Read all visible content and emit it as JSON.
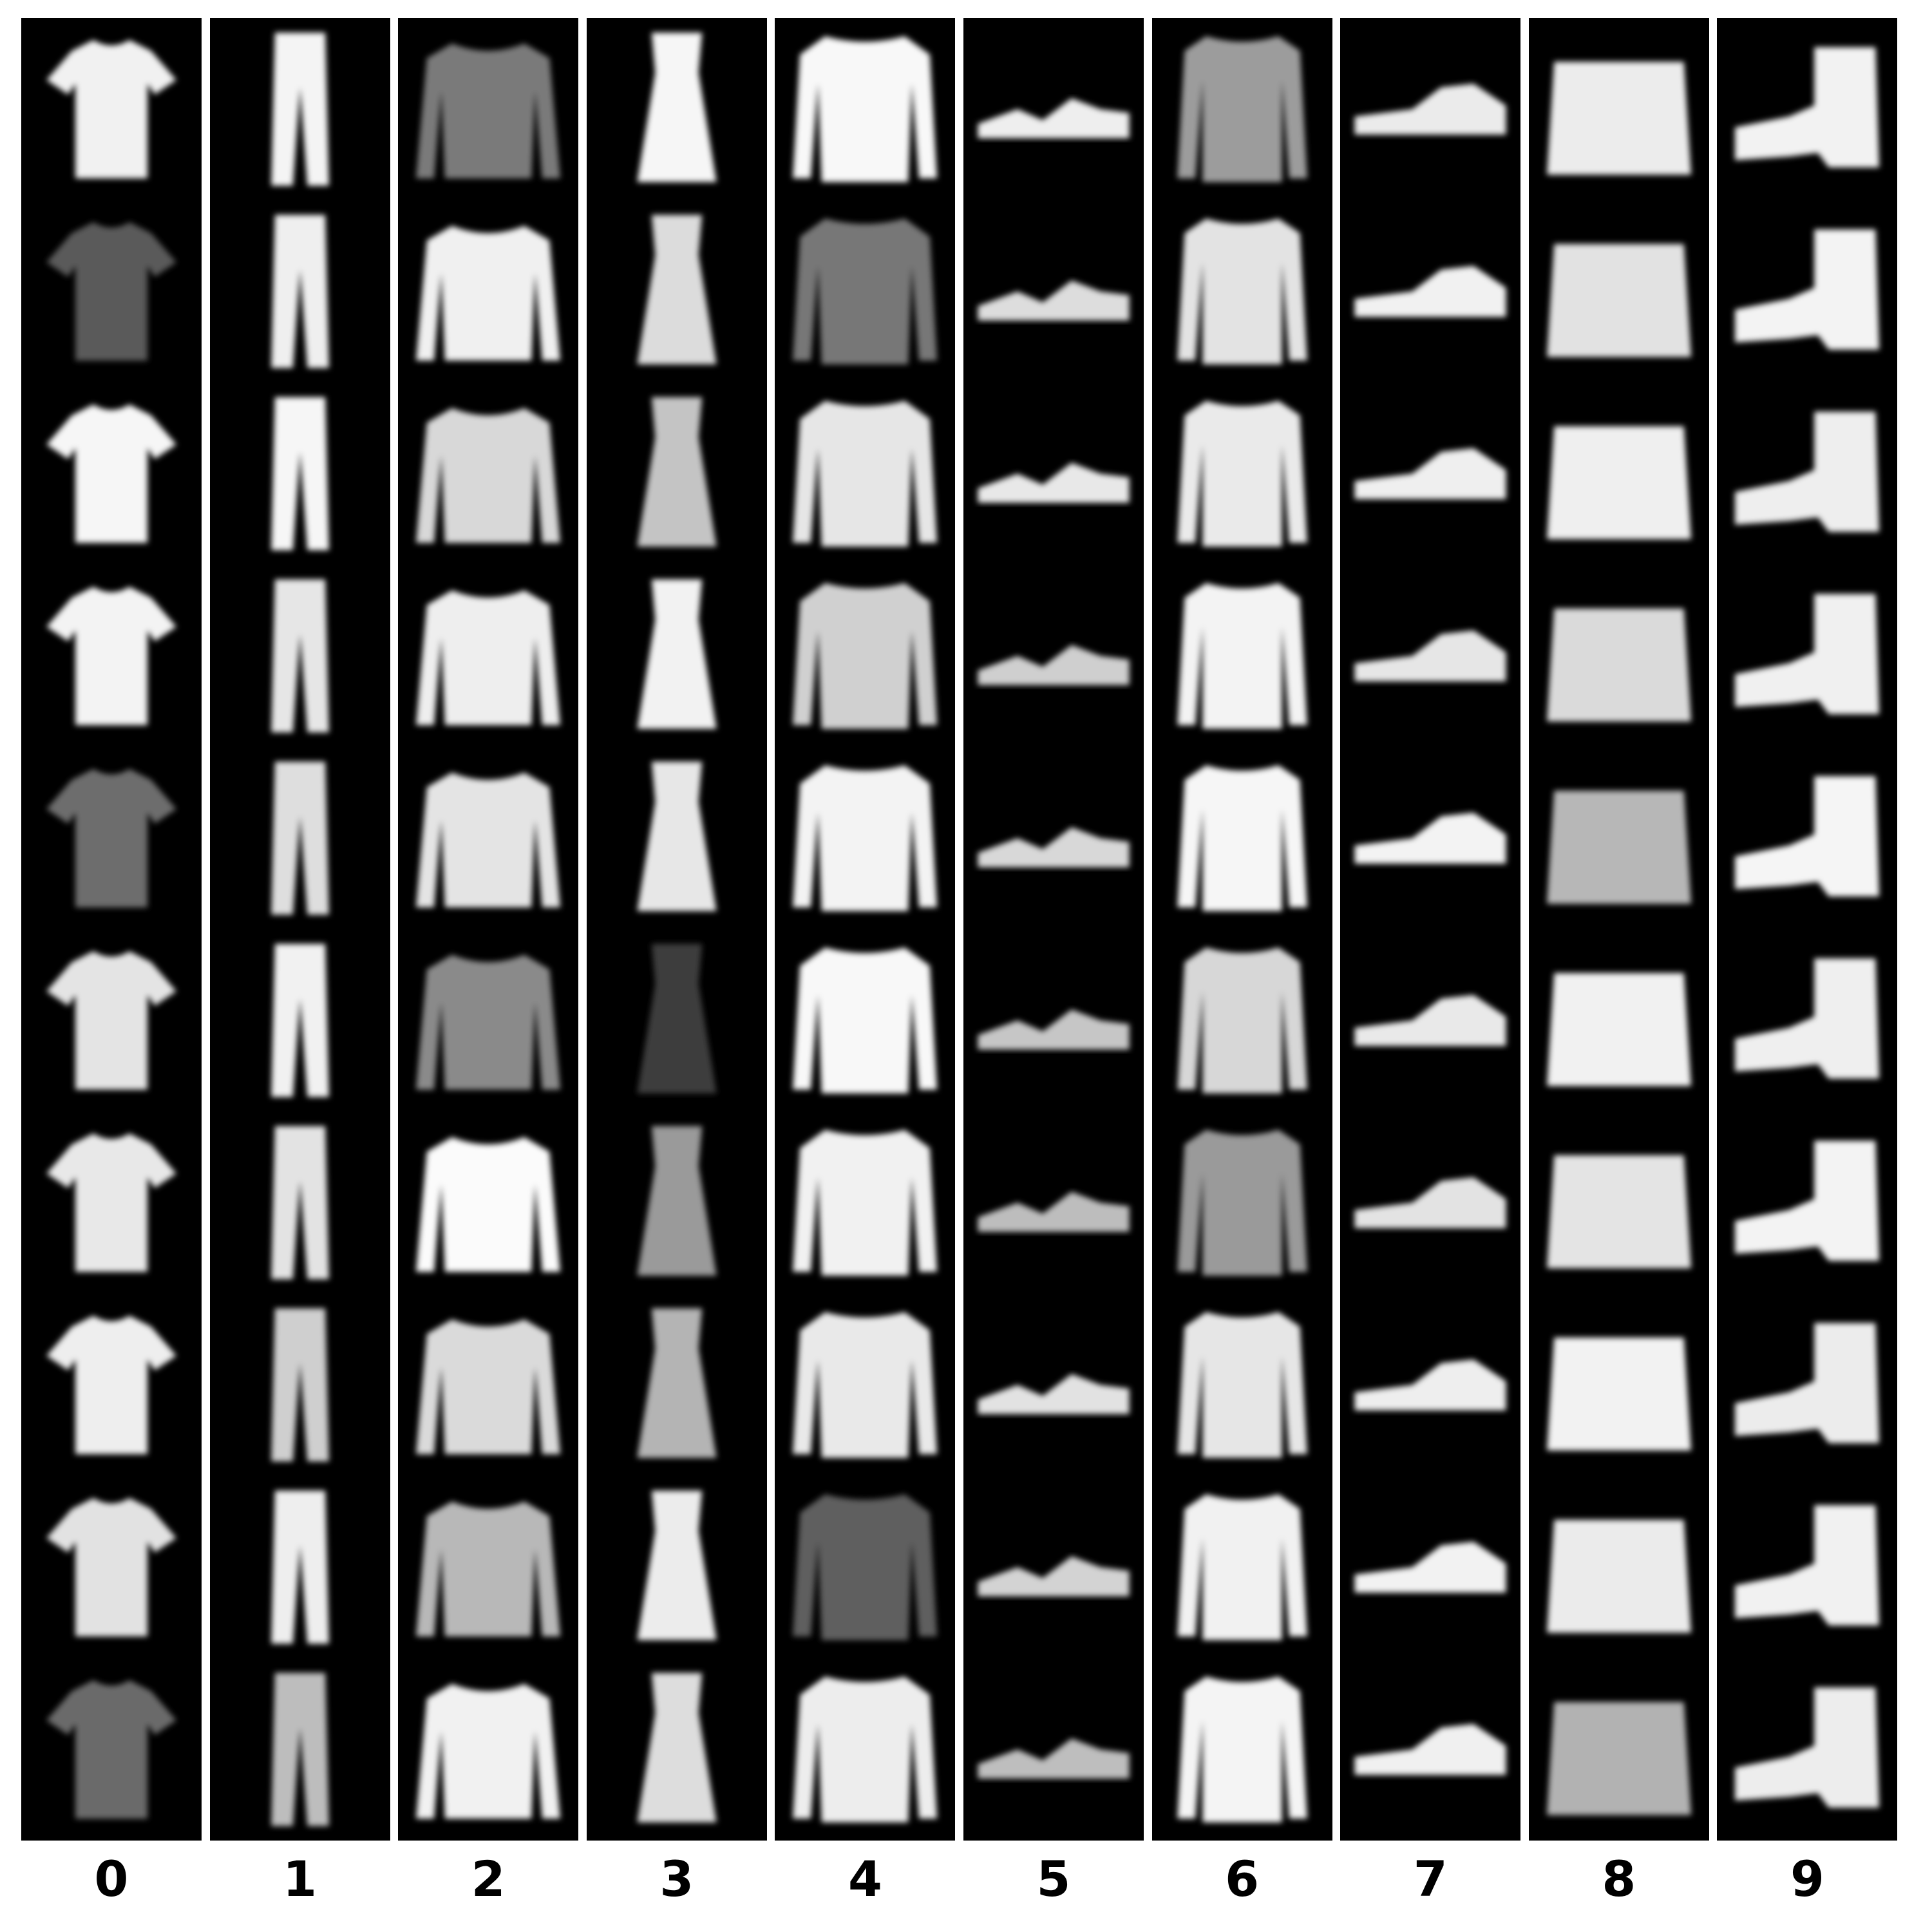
{
  "figure": {
    "columns": [
      {
        "label": "0",
        "item": "tshirt",
        "shade": [
          "#f1f1f1",
          "#5a5a5a",
          "#f6f6f6",
          "#f3f3f3",
          "#6d6d6d",
          "#e4e4e4",
          "#e8e8e8",
          "#eeeeee",
          "#e2e2e2",
          "#6b6b6b"
        ]
      },
      {
        "label": "1",
        "item": "trouser",
        "shade": [
          "#f4f4f4",
          "#efefef",
          "#f6f6f6",
          "#e6e6e6",
          "#dedede",
          "#f1f1f1",
          "#e3e3e3",
          "#cfcfcf",
          "#eeeeee",
          "#bdbdbd"
        ]
      },
      {
        "label": "2",
        "item": "pullover",
        "shade": [
          "#7a7a7a",
          "#f0f0f0",
          "#d8d8d8",
          "#eeeeee",
          "#e4e4e4",
          "#8a8a8a",
          "#fbfbfb",
          "#dadada",
          "#b8b8b8",
          "#f1f1f1"
        ]
      },
      {
        "label": "3",
        "item": "dress",
        "shade": [
          "#f6f6f6",
          "#dcdcdc",
          "#c4c4c4",
          "#f2f2f2",
          "#e7e7e7",
          "#3c3c3c",
          "#9a9a9a",
          "#b4b4b4",
          "#ececec",
          "#dddddd"
        ]
      },
      {
        "label": "4",
        "item": "coat",
        "shade": [
          "#f8f8f8",
          "#777777",
          "#e6e6e6",
          "#d0d0d0",
          "#f3f3f3",
          "#f8f8f8",
          "#f1f1f1",
          "#e9e9e9",
          "#5e5e5e",
          "#ededed"
        ]
      },
      {
        "label": "5",
        "item": "sandal",
        "shade": [
          "#eeeeee",
          "#dddddd",
          "#e8e8e8",
          "#cfcfcf",
          "#d8d8d8",
          "#c6c6c6",
          "#bdbdbd",
          "#e2e2e2",
          "#d3d3d3",
          "#bebebe"
        ]
      },
      {
        "label": "6",
        "item": "shirt",
        "shade": [
          "#9c9c9c",
          "#e3e3e3",
          "#eaeaea",
          "#f3f3f3",
          "#f6f6f6",
          "#d7d7d7",
          "#9a9a9a",
          "#e6e6e6",
          "#f1f1f1",
          "#f4f4f4"
        ]
      },
      {
        "label": "7",
        "item": "sneaker",
        "shade": [
          "#ebebeb",
          "#f1f1f1",
          "#efefef",
          "#e6e6e6",
          "#f3f3f3",
          "#e9e9e9",
          "#e3e3e3",
          "#eeeeee",
          "#f2f2f2",
          "#f0f0f0"
        ]
      },
      {
        "label": "8",
        "item": "bag",
        "shade": [
          "#ececec",
          "#e2e2e2",
          "#efefef",
          "#dadada",
          "#b7b7b7",
          "#f1f1f1",
          "#e4e4e4",
          "#f2f2f2",
          "#ebebeb",
          "#b2b2b2"
        ]
      },
      {
        "label": "9",
        "item": "boot",
        "shade": [
          "#f2f2f2",
          "#f3f3f3",
          "#eeeeee",
          "#f0f0f0",
          "#f5f5f5",
          "#efefef",
          "#f3f3f3",
          "#ececec",
          "#f1f1f1",
          "#ededed"
        ]
      }
    ]
  }
}
